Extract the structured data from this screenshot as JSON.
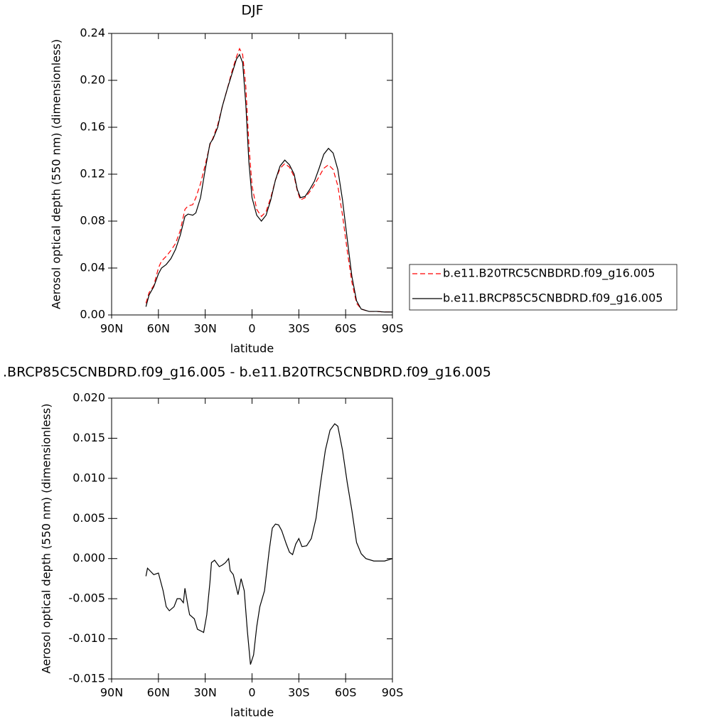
{
  "chart_data": [
    {
      "type": "line",
      "title": "DJF",
      "x_label": "latitude",
      "y_label": "Aerosol optical depth (550 nm) (dimensionless)",
      "xlim": [
        90,
        -90
      ],
      "xticks": [
        {
          "value": 90,
          "label": "90N"
        },
        {
          "value": 60,
          "label": "60N"
        },
        {
          "value": 30,
          "label": "30N"
        },
        0,
        {
          "value": -30,
          "label": "30S"
        },
        {
          "value": -60,
          "label": "60S"
        },
        {
          "value": -90,
          "label": "90S"
        }
      ],
      "ylim": [
        0,
        0.24
      ],
      "yticks": [
        {
          "value": 0,
          "label": "0.00"
        },
        0.04,
        0.08,
        0.12,
        0.16,
        {
          "value": 0.2,
          "label": "0.20"
        },
        0.24
      ],
      "legend": "right",
      "x": [
        68,
        66,
        63,
        60,
        58,
        55,
        52,
        49,
        46,
        43,
        41,
        38,
        36,
        33,
        30,
        27,
        25,
        22,
        19,
        16,
        13,
        10,
        8,
        6,
        4,
        2,
        0,
        -3,
        -6,
        -9,
        -12,
        -15,
        -18,
        -21,
        -24,
        -27,
        -29,
        -31,
        -34,
        -37,
        -40,
        -43,
        -46,
        -49,
        -52,
        -55,
        -58,
        -61,
        -64,
        -67,
        -70,
        -75,
        -80,
        -85,
        -90
      ],
      "series": [
        {
          "name": "b.e11.B20TRC5CNBDRD.f09_g16.005",
          "color": "#ff0000",
          "line_style": "dashed",
          "values": [
            0.01,
            0.019,
            0.025,
            0.04,
            0.046,
            0.05,
            0.055,
            0.061,
            0.072,
            0.09,
            0.093,
            0.094,
            0.1,
            0.112,
            0.128,
            0.145,
            0.151,
            0.162,
            0.178,
            0.192,
            0.207,
            0.22,
            0.227,
            0.222,
            0.195,
            0.145,
            0.11,
            0.09,
            0.084,
            0.088,
            0.1,
            0.115,
            0.125,
            0.129,
            0.126,
            0.118,
            0.106,
            0.098,
            0.1,
            0.105,
            0.111,
            0.118,
            0.125,
            0.128,
            0.124,
            0.11,
            0.085,
            0.055,
            0.028,
            0.01,
            0.005,
            0.003,
            0.003,
            0.0025,
            0.0025
          ]
        },
        {
          "name": "b.e11.BRCP85C5CNBDRD.f09_g16.005",
          "color": "#000000",
          "line_style": "solid",
          "values": [
            0.007,
            0.017,
            0.024,
            0.035,
            0.04,
            0.043,
            0.048,
            0.056,
            0.068,
            0.084,
            0.086,
            0.085,
            0.087,
            0.1,
            0.124,
            0.146,
            0.15,
            0.16,
            0.178,
            0.192,
            0.205,
            0.218,
            0.222,
            0.215,
            0.18,
            0.13,
            0.1,
            0.085,
            0.08,
            0.085,
            0.098,
            0.115,
            0.127,
            0.132,
            0.128,
            0.12,
            0.107,
            0.1,
            0.101,
            0.107,
            0.114,
            0.125,
            0.137,
            0.142,
            0.138,
            0.124,
            0.098,
            0.065,
            0.033,
            0.012,
            0.005,
            0.003,
            0.003,
            0.0025,
            0.0025
          ]
        }
      ]
    },
    {
      "type": "line",
      "title": ".BRCP85C5CNBDRD.f09_g16.005 - b.e11.B20TRC5CNBDRD.f09_g16.005",
      "x_label": "latitude",
      "y_label": "Aerosol optical depth (550 nm) (dimensionless)",
      "xlim": [
        90,
        -90
      ],
      "xticks": [
        {
          "value": 90,
          "label": "90N"
        },
        {
          "value": 60,
          "label": "60N"
        },
        {
          "value": 30,
          "label": "30N"
        },
        0,
        {
          "value": -30,
          "label": "30S"
        },
        {
          "value": -60,
          "label": "60S"
        },
        {
          "value": -90,
          "label": "90S"
        }
      ],
      "ylim": [
        -0.015,
        0.02
      ],
      "yticks": [
        -0.015,
        {
          "value": -0.01,
          "label": "-0.010"
        },
        -0.005,
        {
          "value": 0,
          "label": "0.000"
        },
        0.005,
        {
          "value": 0.01,
          "label": "0.010"
        },
        0.015,
        {
          "value": 0.02,
          "label": "0.020"
        }
      ],
      "x": [
        68,
        67,
        63,
        60,
        57,
        55,
        53,
        50,
        48,
        46,
        44,
        43,
        41,
        40,
        37,
        35,
        31,
        29,
        27,
        26,
        24,
        21,
        19,
        17,
        15,
        14,
        12,
        9,
        7,
        5,
        3,
        1,
        -1,
        -3,
        -5,
        -8,
        -11,
        -13,
        -15,
        -17,
        -19,
        -22,
        -24,
        -26,
        -28,
        -30,
        -32,
        -35,
        -38,
        -41,
        -44,
        -47,
        -50,
        -53,
        -55,
        -58,
        -61,
        -64,
        -67,
        -70,
        -73,
        -78,
        -85,
        -90
      ],
      "series": [
        {
          "color": "#000000",
          "line_style": "solid",
          "values": [
            -0.0022,
            -0.0012,
            -0.002,
            -0.0018,
            -0.004,
            -0.006,
            -0.0065,
            -0.006,
            -0.005,
            -0.005,
            -0.0055,
            -0.0037,
            -0.006,
            -0.007,
            -0.0075,
            -0.0088,
            -0.0092,
            -0.007,
            -0.003,
            -0.0005,
            -0.0002,
            -0.001,
            -0.0008,
            -0.0005,
            0,
            -0.0015,
            -0.002,
            -0.0045,
            -0.0025,
            -0.004,
            -0.009,
            -0.0132,
            -0.012,
            -0.0085,
            -0.006,
            -0.004,
            0.001,
            0.0038,
            0.0043,
            0.0042,
            0.0035,
            0.0018,
            0.0008,
            0.0005,
            0.0018,
            0.0025,
            0.0015,
            0.0016,
            0.0025,
            0.005,
            0.0095,
            0.0135,
            0.016,
            0.0168,
            0.0165,
            0.0135,
            0.0095,
            0.006,
            0.002,
            0.0006,
            0,
            -0.0003,
            -0.0003,
            0
          ]
        }
      ]
    }
  ]
}
